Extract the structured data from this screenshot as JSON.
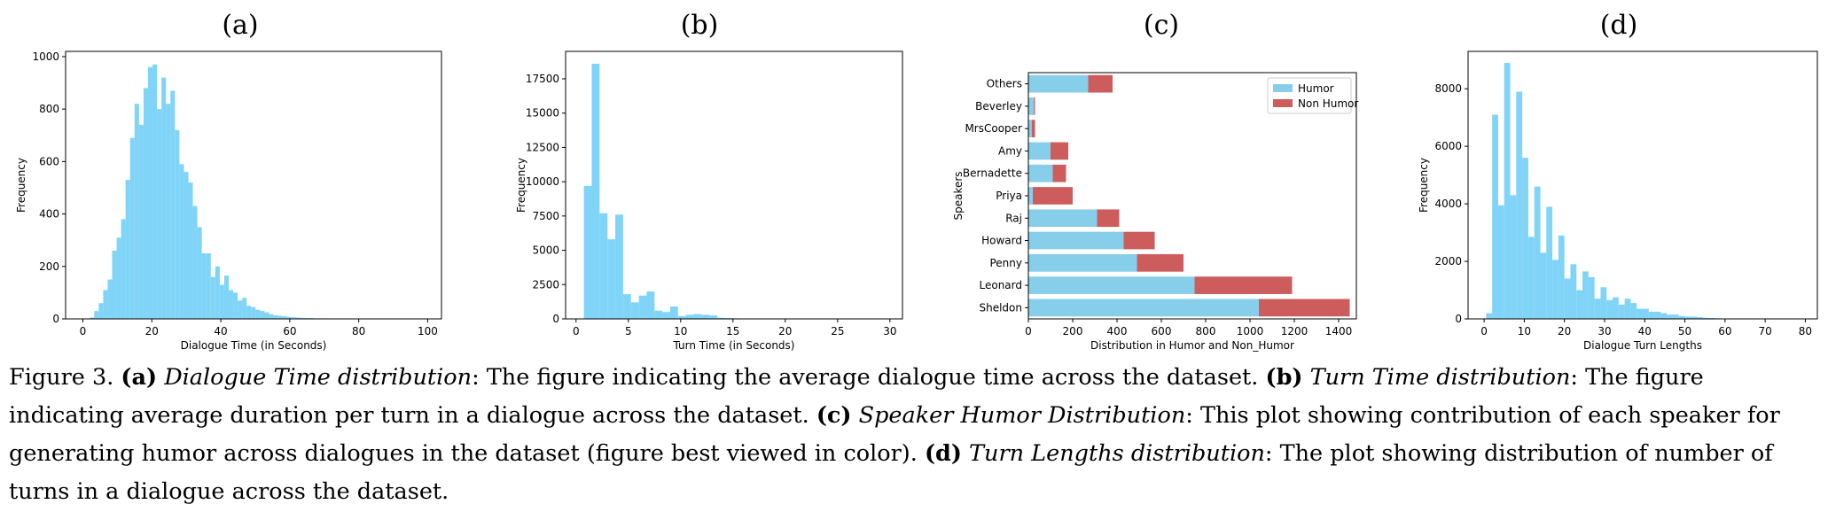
{
  "chart_data": [
    {
      "panel": "(a)",
      "type": "bar",
      "xlabel": "Dialogue Time (in Seconds)",
      "ylabel": "Frequency",
      "xlim": [
        -5,
        104
      ],
      "ylim": [
        0,
        1020
      ],
      "xticks": [
        0,
        20,
        40,
        60,
        80,
        100
      ],
      "yticks": [
        0,
        200,
        400,
        600,
        800,
        1000
      ],
      "bin_width": 1.3,
      "x": [
        2.0,
        3.3,
        4.6,
        5.9,
        7.2,
        8.5,
        9.8,
        11.1,
        12.4,
        13.7,
        15.0,
        16.3,
        17.6,
        18.9,
        20.2,
        21.5,
        22.8,
        24.1,
        25.4,
        26.7,
        28.0,
        29.3,
        30.6,
        31.9,
        33.2,
        34.5,
        35.8,
        37.1,
        38.4,
        39.7,
        41.0,
        42.3,
        43.6,
        44.9,
        46.2,
        47.5,
        48.8,
        50.1,
        51.4,
        52.7,
        54.0,
        55.3,
        56.6,
        57.9,
        59.2,
        60.5,
        61.8,
        63.1,
        64.4,
        65.7,
        67.0,
        68.3,
        69.6,
        70.9,
        72.2,
        73.5,
        74.8,
        76.1,
        77.4,
        78.7
      ],
      "values": [
        5,
        30,
        60,
        110,
        150,
        260,
        310,
        380,
        530,
        690,
        820,
        740,
        880,
        960,
        970,
        800,
        920,
        820,
        870,
        720,
        590,
        560,
        520,
        430,
        350,
        250,
        250,
        160,
        200,
        130,
        165,
        110,
        100,
        70,
        80,
        50,
        45,
        35,
        30,
        25,
        18,
        14,
        12,
        10,
        8,
        6,
        5,
        4,
        3,
        3,
        2,
        2,
        2,
        1,
        1,
        1,
        1,
        1,
        1,
        1
      ]
    },
    {
      "panel": "(b)",
      "type": "bar",
      "xlabel": "Turn Time (in Seconds)",
      "ylabel": "Frequency",
      "xlim": [
        -1,
        31.2
      ],
      "ylim": [
        0,
        19500
      ],
      "xticks": [
        0,
        5,
        10,
        15,
        20,
        25,
        30
      ],
      "yticks": [
        0,
        2500,
        5000,
        7500,
        10000,
        12500,
        15000,
        17500
      ],
      "bin_width": 0.75,
      "x": [
        0.75,
        1.5,
        2.25,
        3.0,
        3.75,
        4.5,
        5.25,
        6.0,
        6.75,
        7.5,
        8.25,
        9.0,
        9.75,
        10.5,
        11.25,
        12.0,
        12.75,
        13.5,
        14.25,
        15.0,
        15.75,
        16.5,
        17.25,
        18.0
      ],
      "values": [
        9700,
        18600,
        7700,
        5800,
        7600,
        1800,
        1200,
        1700,
        2000,
        600,
        500,
        900,
        200,
        300,
        350,
        300,
        250,
        80,
        60,
        40,
        30,
        20,
        10,
        10
      ]
    },
    {
      "panel": "(c)",
      "type": "bar",
      "orientation": "horizontal",
      "stacked": true,
      "xlabel": "Distribution in Humor and Non_Humor",
      "ylabel": "Speakers",
      "xlim": [
        0,
        1480
      ],
      "xticks": [
        0,
        200,
        400,
        600,
        800,
        1000,
        1200,
        1400
      ],
      "categories": [
        "Sheldon",
        "Leonard",
        "Penny",
        "Howard",
        "Raj",
        "Priya",
        "Bernadette",
        "Amy",
        "MrsCooper",
        "Beverley",
        "Others"
      ],
      "series": [
        {
          "name": "Humor",
          "color": "#87CEEB",
          "values": [
            1040,
            750,
            490,
            430,
            310,
            20,
            110,
            100,
            15,
            25,
            270
          ]
        },
        {
          "name": "Non Humor",
          "color": "#CD5C5C",
          "values": [
            410,
            440,
            210,
            140,
            100,
            180,
            60,
            80,
            15,
            5,
            110
          ]
        }
      ],
      "legend_position": "top-right"
    },
    {
      "panel": "(d)",
      "type": "bar",
      "xlabel": "Dialogue Turn Lengths",
      "ylabel": "Frequency",
      "xlim": [
        -4,
        83
      ],
      "ylim": [
        0,
        9300
      ],
      "xticks": [
        0,
        10,
        20,
        30,
        40,
        50,
        60,
        70,
        80
      ],
      "yticks": [
        0,
        2000,
        4000,
        6000,
        8000
      ],
      "bin_width": 1.5,
      "x": [
        0.5,
        2.0,
        3.5,
        5.0,
        6.5,
        8.0,
        9.5,
        11.0,
        12.5,
        14.0,
        15.5,
        17.0,
        18.5,
        20.0,
        21.5,
        23.0,
        24.5,
        26.0,
        27.5,
        29.0,
        30.5,
        32.0,
        33.5,
        35.0,
        36.5,
        38.0,
        39.5,
        41.0,
        42.5,
        44.0,
        45.5,
        47.0,
        48.5,
        50.0,
        51.5,
        53.0,
        54.5,
        56.0,
        57.5,
        59.0
      ],
      "values": [
        200,
        7100,
        3950,
        8900,
        4300,
        7900,
        5600,
        2850,
        4600,
        2300,
        3900,
        2050,
        2900,
        1400,
        1900,
        1000,
        1650,
        1450,
        700,
        1100,
        650,
        750,
        500,
        700,
        550,
        350,
        350,
        250,
        250,
        200,
        150,
        150,
        100,
        80,
        80,
        60,
        40,
        30,
        20,
        10
      ]
    }
  ],
  "caption": {
    "prefix": "Figure 3. ",
    "a_label": "(a)",
    "a_title": "Dialogue Time distribution",
    "a_text": ": The figure indicating the average dialogue time across the dataset. ",
    "b_label": "(b)",
    "b_title": "Turn Time distribution",
    "b_text": ": The figure indicating average duration per turn in a dialogue across the dataset. ",
    "c_label": "(c)",
    "c_title": "Speaker Humor Distribution",
    "c_text": ": This plot showing contribution of each speaker for generating humor across dialogues in the dataset (figure best viewed in color). ",
    "d_label": "(d)",
    "d_title": "Turn Lengths distribution",
    "d_text": ": The plot showing distribution of number of turns in a dialogue across the dataset."
  },
  "colors": {
    "hist_fill": "#7fd4f7",
    "humor": "#87CEEB",
    "non_humor": "#CD5C5C"
  }
}
